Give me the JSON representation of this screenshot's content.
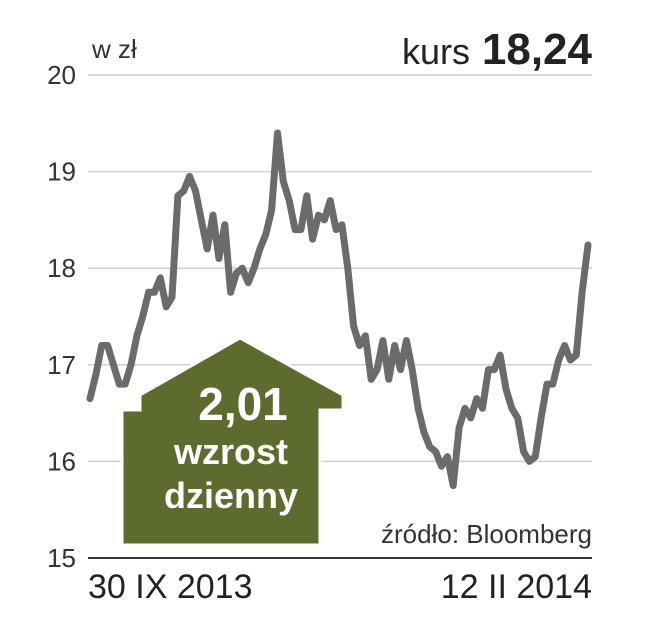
{
  "chart_data": {
    "type": "line",
    "ylabel": "w zł",
    "ylim": [
      15,
      20
    ],
    "yticks": [
      "15",
      "16",
      "17",
      "18",
      "19",
      "20"
    ],
    "xlabels": [
      "30 IX 2013",
      "12 II 2014"
    ],
    "grid": true,
    "headline_label": "kurs",
    "headline_value": "18,24",
    "source": "źródło: Bloomberg",
    "badge": {
      "value": "2,01",
      "line1": "wzrost",
      "line2": "dzienny",
      "color": "#5e6b2f"
    },
    "series": [
      {
        "color": "#6b6b6b",
        "values": [
          16.65,
          16.9,
          17.2,
          17.2,
          17.0,
          16.8,
          16.8,
          17.0,
          17.3,
          17.5,
          17.75,
          17.75,
          17.9,
          17.6,
          17.7,
          18.75,
          18.8,
          18.95,
          18.8,
          18.5,
          18.2,
          18.55,
          18.1,
          18.45,
          17.75,
          17.95,
          18.0,
          17.85,
          18.0,
          18.2,
          18.35,
          18.6,
          19.4,
          18.9,
          18.7,
          18.4,
          18.4,
          18.75,
          18.3,
          18.55,
          18.5,
          18.7,
          18.4,
          18.45,
          18.0,
          17.4,
          17.2,
          17.3,
          16.85,
          16.95,
          17.25,
          16.85,
          17.2,
          16.95,
          17.25,
          16.95,
          16.55,
          16.3,
          16.15,
          16.1,
          15.95,
          16.05,
          15.75,
          16.35,
          16.55,
          16.45,
          16.65,
          16.55,
          16.95,
          16.95,
          17.1,
          16.75,
          16.55,
          16.45,
          16.1,
          16.0,
          16.05,
          16.45,
          16.8,
          16.8,
          17.05,
          17.2,
          17.05,
          17.1,
          17.75,
          18.24
        ]
      }
    ]
  }
}
